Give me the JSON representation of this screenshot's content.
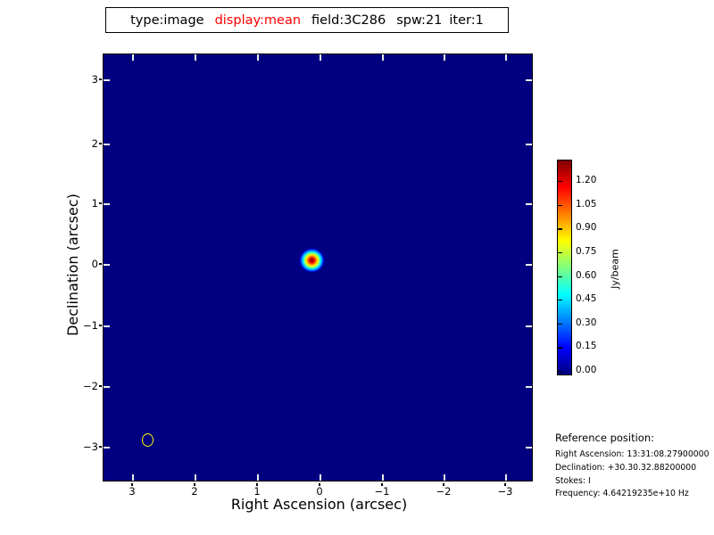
{
  "title": {
    "parts": [
      {
        "text": "type:image",
        "color": "#000000"
      },
      {
        "text": "display:mean",
        "color": "#ff0000"
      },
      {
        "text": "field:3C286",
        "color": "#000000"
      },
      {
        "text": "spw:21",
        "color": "#000000"
      },
      {
        "text": "iter:1",
        "color": "#000000"
      }
    ]
  },
  "plot": {
    "xlabel": "Right Ascension (arcsec)",
    "ylabel": "Declination (arcsec)",
    "x_ticks": [
      "3",
      "2",
      "1",
      "0",
      "−1",
      "−2",
      "−3"
    ],
    "y_ticks": [
      "3",
      "2",
      "1",
      "0",
      "−1",
      "−2",
      "−3"
    ],
    "background_color": "#000080"
  },
  "colorbar": {
    "label": "Jy/beam",
    "ticks": [
      "0.00",
      "0.15",
      "0.30",
      "0.45",
      "0.60",
      "0.75",
      "0.90",
      "1.05",
      "1.20"
    ]
  },
  "reference": {
    "heading": "Reference position:",
    "lines": [
      "Right Ascension: 13:31:08.27900000",
      "Declination: +30.30.32.88200000",
      "Stokes: I",
      "Frequency: 4.64219235e+10 Hz"
    ]
  },
  "chart_data": {
    "type": "heatmap",
    "title": "type:image display:mean field:3C286 spw:21 iter:1",
    "xlabel": "Right Ascension (arcsec)",
    "ylabel": "Declination (arcsec)",
    "x_ticks": [
      3,
      2,
      1,
      0,
      -1,
      -2,
      -3
    ],
    "y_ticks": [
      -3,
      -2,
      -1,
      0,
      1,
      2,
      3
    ],
    "xlim": [
      3.5,
      -3.5
    ],
    "ylim": [
      -3.5,
      3.5
    ],
    "x_axis_inverted": true,
    "grid": false,
    "legend": "none",
    "colormap": "jet",
    "colorbar": {
      "label": "Jy/beam",
      "ticks": [
        0.0,
        0.15,
        0.3,
        0.45,
        0.6,
        0.75,
        0.9,
        1.05,
        1.2
      ],
      "range": [
        0.0,
        1.33
      ]
    },
    "background_value_jy_per_beam": 0.0,
    "features": [
      {
        "name": "point source (3C286)",
        "ra_offset_arcsec": 0.1,
        "dec_offset_arcsec": 0.05,
        "peak_jy_per_beam": 1.33,
        "extent_arcsec": 0.35
      },
      {
        "name": "restoring beam ellipse",
        "ra_offset_arcsec": 2.8,
        "dec_offset_arcsec": -2.85,
        "style": "yellow outline, unfilled"
      }
    ]
  }
}
